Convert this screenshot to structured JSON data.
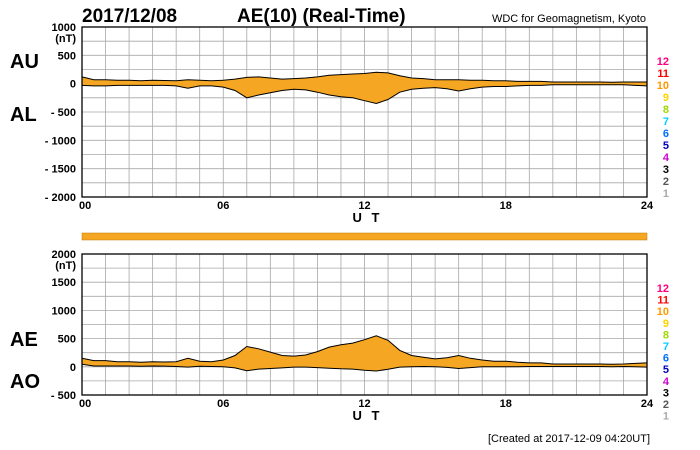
{
  "header": {
    "date": "2017/12/08",
    "title": "AE(10) (Real-Time)",
    "org": "WDC for Geomagnetism, Kyoto"
  },
  "footer": "[Created at 2017-12-09 04:20UT]",
  "colors": {
    "fill": "#f5a623",
    "grid": "#a8a8a8",
    "line": "#000000"
  },
  "chart_data": [
    {
      "type": "area",
      "series": [
        {
          "name": "AU",
          "x": [
            0,
            0.5,
            1,
            1.5,
            2,
            2.5,
            3,
            3.5,
            4,
            4.5,
            5,
            5.5,
            6,
            6.5,
            7,
            7.5,
            8,
            8.5,
            9,
            9.5,
            10,
            10.5,
            11,
            11.5,
            12,
            12.5,
            13,
            13.5,
            14,
            14.5,
            15,
            15.5,
            16,
            16.5,
            17,
            17.5,
            18,
            18.5,
            19,
            19.5,
            20,
            20.5,
            21,
            21.5,
            22,
            22.5,
            23,
            23.5,
            24
          ],
          "values": [
            120,
            70,
            70,
            60,
            60,
            50,
            60,
            55,
            50,
            70,
            60,
            50,
            60,
            80,
            110,
            120,
            100,
            80,
            90,
            100,
            120,
            150,
            160,
            170,
            180,
            200,
            190,
            140,
            100,
            90,
            70,
            70,
            70,
            60,
            60,
            50,
            50,
            40,
            40,
            40,
            30,
            30,
            30,
            30,
            30,
            25,
            30,
            30,
            30
          ]
        },
        {
          "name": "AL",
          "x": [
            0,
            0.5,
            1,
            1.5,
            2,
            2.5,
            3,
            3.5,
            4,
            4.5,
            5,
            5.5,
            6,
            6.5,
            7,
            7.5,
            8,
            8.5,
            9,
            9.5,
            10,
            10.5,
            11,
            11.5,
            12,
            12.5,
            13,
            13.5,
            14,
            14.5,
            15,
            15.5,
            16,
            16.5,
            17,
            17.5,
            18,
            18.5,
            19,
            19.5,
            20,
            20.5,
            21,
            21.5,
            22,
            22.5,
            23,
            23.5,
            24
          ],
          "values": [
            -30,
            -40,
            -40,
            -30,
            -30,
            -30,
            -30,
            -30,
            -40,
            -80,
            -40,
            -40,
            -60,
            -120,
            -250,
            -200,
            -160,
            -120,
            -100,
            -110,
            -150,
            -200,
            -230,
            -250,
            -300,
            -350,
            -280,
            -150,
            -100,
            -80,
            -70,
            -90,
            -130,
            -90,
            -60,
            -50,
            -50,
            -40,
            -30,
            -30,
            -20,
            -20,
            -20,
            -20,
            -20,
            -20,
            -20,
            -30,
            -40
          ]
        }
      ],
      "ylabel": "(nT)",
      "ylim": [
        -2000,
        1000
      ],
      "yticks": [
        "1000",
        "500",
        "0",
        "- 500",
        "- 1000",
        "- 1500",
        "- 2000"
      ],
      "xticks": [
        "00",
        "06",
        "12",
        "18",
        "24"
      ],
      "xlim": [
        0,
        24
      ],
      "xlabel": "U T",
      "labels": [
        "AU",
        "AL"
      ],
      "legend": [
        "12",
        "11",
        "10",
        "9",
        "8",
        "7",
        "6",
        "5",
        "4",
        "3",
        "2",
        "1"
      ],
      "legend_colors": [
        "#ff0080",
        "#ff0000",
        "#ff9900",
        "#ffd400",
        "#a0d800",
        "#00d0ff",
        "#0070ff",
        "#0000c0",
        "#cc00cc",
        "#000000",
        "#555555",
        "#aaaaaa"
      ],
      "grid": true
    },
    {
      "type": "area",
      "series": [
        {
          "name": "AE",
          "x": [
            0,
            0.5,
            1,
            1.5,
            2,
            2.5,
            3,
            3.5,
            4,
            4.5,
            5,
            5.5,
            6,
            6.5,
            7,
            7.5,
            8,
            8.5,
            9,
            9.5,
            10,
            10.5,
            11,
            11.5,
            12,
            12.5,
            13,
            13.5,
            14,
            14.5,
            15,
            15.5,
            16,
            16.5,
            17,
            17.5,
            18,
            18.5,
            19,
            19.5,
            20,
            20.5,
            21,
            21.5,
            22,
            22.5,
            23,
            23.5,
            24
          ],
          "values": [
            150,
            110,
            110,
            90,
            90,
            80,
            90,
            85,
            90,
            150,
            100,
            90,
            120,
            200,
            360,
            320,
            260,
            200,
            190,
            210,
            270,
            350,
            390,
            420,
            480,
            550,
            470,
            290,
            200,
            170,
            140,
            160,
            200,
            150,
            120,
            100,
            100,
            80,
            70,
            70,
            50,
            50,
            50,
            50,
            50,
            45,
            50,
            60,
            70
          ]
        },
        {
          "name": "AO",
          "x": [
            0,
            0.5,
            1,
            1.5,
            2,
            2.5,
            3,
            3.5,
            4,
            4.5,
            5,
            5.5,
            6,
            6.5,
            7,
            7.5,
            8,
            8.5,
            9,
            9.5,
            10,
            10.5,
            11,
            11.5,
            12,
            12.5,
            13,
            13.5,
            14,
            14.5,
            15,
            15.5,
            16,
            16.5,
            17,
            17.5,
            18,
            18.5,
            19,
            19.5,
            20,
            20.5,
            21,
            21.5,
            22,
            22.5,
            23,
            23.5,
            24
          ],
          "values": [
            45,
            15,
            15,
            15,
            15,
            10,
            15,
            12,
            5,
            -5,
            10,
            5,
            0,
            -20,
            -70,
            -40,
            -30,
            -20,
            -5,
            -5,
            -15,
            -25,
            -35,
            -40,
            -60,
            -75,
            -45,
            -5,
            0,
            5,
            0,
            -10,
            -30,
            -15,
            0,
            0,
            0,
            0,
            5,
            5,
            5,
            5,
            5,
            5,
            5,
            2,
            5,
            0,
            -5
          ]
        }
      ],
      "ylabel": "(nT)",
      "ylim": [
        -500,
        2000
      ],
      "yticks": [
        "2000",
        "1500",
        "1000",
        "500",
        "0",
        "- 500"
      ],
      "xticks": [
        "00",
        "06",
        "12",
        "18",
        "24"
      ],
      "xlim": [
        0,
        24
      ],
      "xlabel": "U T",
      "labels": [
        "AE",
        "AO"
      ],
      "legend": [
        "12",
        "11",
        "10",
        "9",
        "8",
        "7",
        "6",
        "5",
        "4",
        "3",
        "2",
        "1"
      ],
      "legend_colors": [
        "#ff0080",
        "#ff0000",
        "#ff9900",
        "#ffd400",
        "#a0d800",
        "#00d0ff",
        "#0070ff",
        "#0000c0",
        "#cc00cc",
        "#000000",
        "#555555",
        "#aaaaaa"
      ],
      "grid": true
    }
  ]
}
